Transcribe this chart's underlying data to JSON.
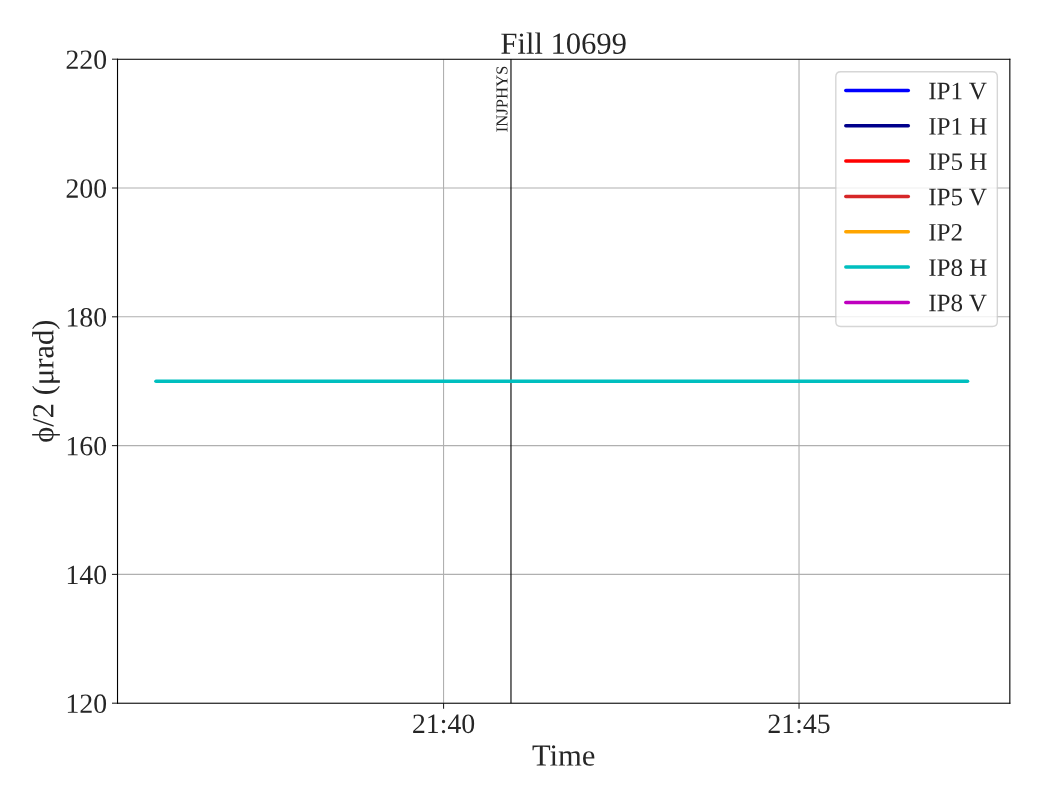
{
  "chart_data": {
    "type": "line",
    "title": "Fill 10699",
    "xlabel": "Time",
    "ylabel": "ϕ/2 (μrad)",
    "xlim": [
      21.5903,
      21.7994
    ],
    "xticks": [
      {
        "value": 21.6667,
        "label": "21:40"
      },
      {
        "value": 21.75,
        "label": "21:45"
      }
    ],
    "ylim": [
      120,
      220
    ],
    "yticks": [
      120,
      140,
      160,
      180,
      200,
      220
    ],
    "grid": true,
    "legend": "top right",
    "ref_lines": [
      {
        "axis": "x",
        "value": 21.6825,
        "label": "INJPHYS",
        "color": "#000000"
      }
    ],
    "series": [
      {
        "name": "IP1 V",
        "color": "#0000ff"
      },
      {
        "name": "IP1 H",
        "color": "#00008b"
      },
      {
        "name": "IP5 H",
        "color": "#ff0000"
      },
      {
        "name": "IP5 V",
        "color": "#d62728"
      },
      {
        "name": "IP2",
        "color": "#ffa500"
      },
      {
        "name": "IP8 H",
        "color": "#00bfbf",
        "x": [
          21.5993,
          21.7895
        ],
        "values": [
          170,
          170
        ]
      },
      {
        "name": "IP8 V",
        "color": "#bf00bf"
      }
    ]
  }
}
